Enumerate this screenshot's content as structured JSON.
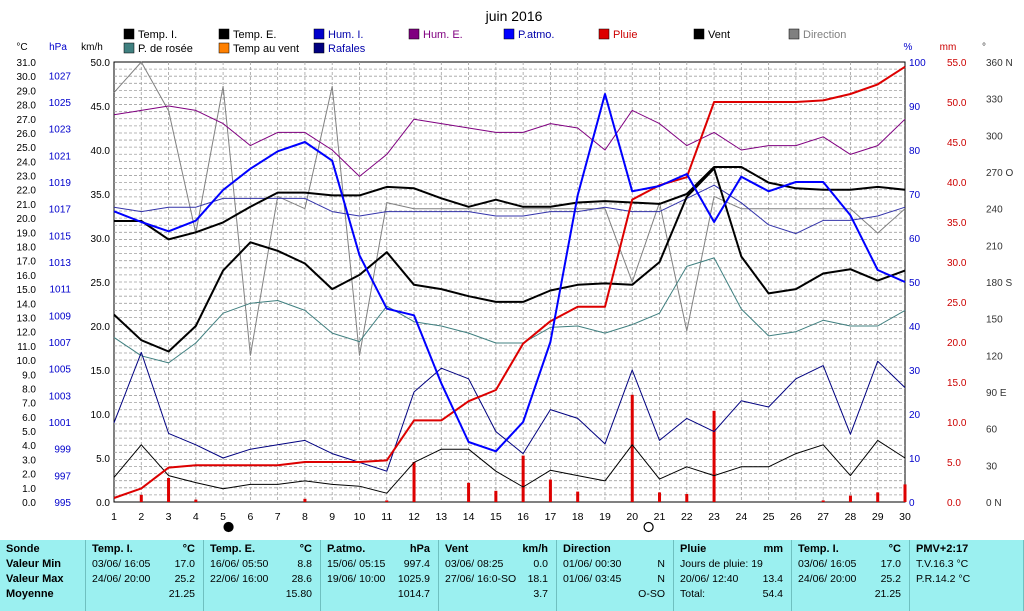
{
  "chart_data": {
    "type": "line",
    "title": "juin 2016",
    "x": [
      1,
      2,
      3,
      4,
      5,
      6,
      7,
      8,
      9,
      10,
      11,
      12,
      13,
      14,
      15,
      16,
      17,
      18,
      19,
      20,
      21,
      22,
      23,
      24,
      25,
      26,
      27,
      28,
      29,
      30
    ],
    "axes": {
      "left_c": {
        "label": "°C",
        "min": 0.0,
        "max": 31.0,
        "ticks": [
          "0.0",
          "1.0",
          "2.0",
          "3.0",
          "4.0",
          "5.0",
          "6.0",
          "7.0",
          "8.0",
          "9.0",
          "10.0",
          "11.0",
          "12.0",
          "13.0",
          "14.0",
          "15.0",
          "16.0",
          "17.0",
          "18.0",
          "19.0",
          "20.0",
          "21.0",
          "22.0",
          "23.0",
          "24.0",
          "25.0",
          "26.0",
          "27.0",
          "28.0",
          "29.0",
          "30.0",
          "31.0"
        ]
      },
      "left_hpa": {
        "label": "hPa",
        "min": 995,
        "max": 1028,
        "ticks": [
          "995",
          "997",
          "999",
          "1001",
          "1003",
          "1005",
          "1007",
          "1009",
          "1011",
          "1013",
          "1015",
          "1017",
          "1019",
          "1021",
          "1023",
          "1025",
          "1027"
        ]
      },
      "left_kmh": {
        "label": "km/h",
        "min": 0,
        "max": 50,
        "ticks": [
          "0.0",
          "5.0",
          "10.0",
          "15.0",
          "20.0",
          "25.0",
          "30.0",
          "35.0",
          "40.0",
          "45.0",
          "50.0"
        ]
      },
      "right_pct": {
        "label": "%",
        "min": 0,
        "max": 100,
        "ticks": [
          "0",
          "10",
          "20",
          "30",
          "40",
          "50",
          "60",
          "70",
          "80",
          "90",
          "100"
        ]
      },
      "right_mm": {
        "label": "mm",
        "min": 0,
        "max": 55,
        "ticks": [
          "0.0",
          "5.0",
          "10.0",
          "15.0",
          "20.0",
          "25.0",
          "30.0",
          "35.0",
          "40.0",
          "45.0",
          "50.0",
          "55.0"
        ]
      },
      "right_deg": {
        "label": "°",
        "min": 0,
        "max": 360,
        "ticks": [
          "0 N",
          "30",
          "60",
          "90 E",
          "120",
          "150",
          "180 S",
          "210",
          "240",
          "270 O",
          "300",
          "330",
          "360 N"
        ]
      }
    },
    "grid": true,
    "legend": [
      {
        "name": "Temp. I.",
        "color": "#000000"
      },
      {
        "name": "Temp. E.",
        "color": "#000000"
      },
      {
        "name": "Hum. I.",
        "color": "#0000cc"
      },
      {
        "name": "Hum. E.",
        "color": "#800080"
      },
      {
        "name": "P.atmo.",
        "color": "#0000ff"
      },
      {
        "name": "Pluie",
        "color": "#dd0000"
      },
      {
        "name": "Vent",
        "color": "#000000"
      },
      {
        "name": "Direction",
        "color": "#808080"
      },
      {
        "name": "P. de rosée",
        "color": "#408080"
      },
      {
        "name": "Temp au vent",
        "color": "#ff8000"
      },
      {
        "name": "Rafales",
        "color": "#000080"
      }
    ],
    "moon_markers": [
      {
        "x": 5.2,
        "phase": "new"
      },
      {
        "x": 20.6,
        "phase": "full"
      }
    ],
    "series": [
      {
        "name": "Temp. I.",
        "axis": "left_c",
        "color": "#000000",
        "width": 2,
        "values": [
          19.8,
          19.8,
          18.5,
          19.0,
          19.7,
          20.8,
          21.8,
          21.8,
          21.6,
          21.6,
          22.2,
          22.1,
          21.4,
          20.8,
          21.3,
          20.8,
          20.8,
          21.1,
          21.2,
          21.1,
          21.0,
          21.7,
          23.6,
          23.6,
          22.5,
          22.1,
          22.0,
          22.0,
          22.2,
          22.0
        ]
      },
      {
        "name": "Temp. E.",
        "axis": "left_c",
        "color": "#000000",
        "width": 2,
        "values": [
          13.2,
          11.4,
          10.6,
          12.4,
          16.3,
          18.3,
          17.7,
          16.8,
          15.0,
          16.0,
          17.6,
          15.3,
          15.0,
          14.5,
          14.1,
          14.1,
          14.9,
          15.3,
          15.4,
          15.3,
          16.9,
          21.5,
          23.5,
          17.3,
          14.7,
          15.0,
          16.1,
          16.4,
          15.6,
          16.3
        ]
      },
      {
        "name": "Hum. I.",
        "axis": "right_pct",
        "color": "#3333aa",
        "width": 1,
        "values": [
          67,
          66,
          67,
          67,
          69,
          69,
          69,
          69,
          66,
          65,
          66,
          66,
          66,
          66,
          65,
          65,
          66,
          66,
          67,
          66,
          66,
          69,
          72,
          68,
          63,
          61,
          64,
          64,
          65,
          67
        ]
      },
      {
        "name": "Hum. E.",
        "axis": "right_pct",
        "color": "#800080",
        "width": 1,
        "values": [
          88,
          89,
          90,
          89,
          86,
          81,
          84,
          84,
          80,
          74,
          79,
          87,
          86,
          85,
          84,
          84,
          86,
          85,
          80,
          89,
          86,
          81,
          84,
          80,
          81,
          81,
          83,
          79,
          81,
          87
        ]
      },
      {
        "name": "P.atmo.",
        "axis": "left_hpa",
        "color": "#0000ff",
        "width": 2,
        "values": [
          1016.8,
          1016.0,
          1015.3,
          1016.1,
          1018.4,
          1020.0,
          1021.3,
          1022.0,
          1020.6,
          1013.5,
          1009.5,
          1009.0,
          1003.9,
          999.5,
          998.8,
          1001.0,
          1007.0,
          1018.0,
          1025.6,
          1018.3,
          1018.7,
          1019.6,
          1016.0,
          1019.4,
          1018.3,
          1019.0,
          1019.0,
          1016.5,
          1012.4,
          1011.5
        ]
      },
      {
        "name": "Pluie",
        "axis": "right_mm",
        "color": "#dd0000",
        "width": 2,
        "values": [
          0.5,
          1.7,
          4.3,
          4.6,
          4.6,
          4.6,
          4.6,
          5.0,
          5.0,
          5.0,
          5.2,
          10.2,
          10.2,
          12.6,
          14.0,
          19.8,
          22.6,
          24.4,
          24.4,
          37.8,
          39.6,
          40.6,
          50.0,
          50.0,
          50.0,
          50.0,
          50.2,
          51.0,
          52.2,
          54.4
        ]
      },
      {
        "name": "Pluie quotidienne",
        "axis": "right_mm",
        "color": "#dd0000",
        "bars": true,
        "values": [
          0.0,
          0.9,
          3.0,
          0.3,
          0.0,
          0.0,
          0.0,
          0.4,
          0.0,
          0.0,
          0.2,
          5.0,
          0.0,
          2.4,
          1.4,
          5.8,
          2.8,
          1.3,
          0.0,
          13.4,
          1.2,
          1.0,
          11.4,
          0.0,
          0.0,
          0.0,
          0.2,
          0.8,
          1.2,
          2.2
        ]
      },
      {
        "name": "Vent",
        "axis": "left_kmh",
        "color": "#000000",
        "width": 1,
        "values": [
          2.8,
          6.5,
          3.0,
          2.2,
          1.5,
          2.0,
          2.0,
          2.4,
          2.0,
          1.8,
          1.0,
          4.5,
          6.0,
          6.0,
          3.5,
          1.7,
          3.6,
          3.0,
          2.4,
          6.5,
          2.6,
          4.0,
          3.0,
          4.0,
          4.0,
          5.5,
          6.5,
          3.0,
          7.0,
          5.0
        ]
      },
      {
        "name": "Rafales",
        "axis": "left_kmh",
        "color": "#000080",
        "width": 1,
        "values": [
          9.0,
          17.0,
          7.8,
          6.5,
          5.0,
          6.0,
          6.5,
          7.0,
          5.5,
          4.5,
          3.5,
          12.5,
          15.2,
          14.0,
          8.0,
          5.5,
          10.5,
          9.5,
          6.6,
          15.0,
          7.0,
          9.5,
          8.0,
          11.5,
          10.8,
          14.0,
          15.5,
          7.7,
          16.0,
          13.0
        ]
      },
      {
        "name": "Direction",
        "axis": "right_deg",
        "color": "#808080",
        "width": 1,
        "values": [
          335,
          360,
          320,
          220,
          340,
          120,
          250,
          240,
          340,
          120,
          245,
          240,
          240,
          240,
          240,
          240,
          240,
          240,
          240,
          180,
          245,
          140,
          250,
          240,
          240,
          240,
          240,
          240,
          220,
          240
        ]
      },
      {
        "name": "P. de rosée",
        "axis": "left_c",
        "color": "#408080",
        "width": 1,
        "values": [
          11.6,
          10.3,
          9.8,
          11.2,
          13.3,
          14.0,
          14.2,
          13.5,
          11.9,
          11.3,
          13.8,
          12.7,
          12.4,
          11.9,
          11.2,
          11.2,
          12.3,
          12.4,
          11.9,
          12.5,
          13.3,
          16.6,
          17.2,
          13.6,
          11.7,
          12.0,
          12.8,
          12.4,
          12.4,
          13.5
        ]
      }
    ]
  },
  "stats": [
    {
      "title": "Sonde",
      "rows": [
        "Valeur Min",
        "Valeur Max",
        "Moyenne"
      ]
    },
    {
      "title": "Temp. I.",
      "unit": "°C",
      "rows": [
        [
          "03/06/  16:05",
          "17.0"
        ],
        [
          "24/06/  20:00",
          "25.2"
        ],
        [
          "",
          "21.25"
        ]
      ]
    },
    {
      "title": "Temp. E.",
      "unit": "°C",
      "rows": [
        [
          "16/06/  05:50",
          "8.8"
        ],
        [
          "22/06/  16:00",
          "28.6"
        ],
        [
          "",
          "15.80"
        ]
      ]
    },
    {
      "title": "P.atmo.",
      "unit": "hPa",
      "rows": [
        [
          "15/06/  05:15",
          "997.4"
        ],
        [
          "19/06/  10:00",
          "1025.9"
        ],
        [
          "",
          "1014.7"
        ]
      ]
    },
    {
      "title": "Vent",
      "unit": "km/h",
      "rows": [
        [
          "03/06/  08:25",
          "0.0"
        ],
        [
          "27/06/  16:0-SO",
          "18.1"
        ],
        [
          "",
          "3.7"
        ]
      ]
    },
    {
      "title": "Direction",
      "unit": "",
      "rows": [
        [
          "01/06/  00:30",
          "N"
        ],
        [
          "01/06/  03:45",
          "N"
        ],
        [
          "",
          "O-SO"
        ]
      ]
    },
    {
      "title": "Pluie",
      "unit": "mm",
      "rows": [
        [
          "Jours de pluie: 19",
          ""
        ],
        [
          "20/06/  12:40",
          "13.4"
        ],
        [
          "Total:",
          "54.4"
        ]
      ]
    },
    {
      "title": "Temp. I.",
      "unit": "°C",
      "rows": [
        [
          "03/06/  16:05",
          "17.0"
        ],
        [
          "24/06/  20:00",
          "25.2"
        ],
        [
          "",
          "21.25"
        ]
      ]
    },
    {
      "title": "PMV+2:17",
      "unit": "",
      "rows": [
        [
          "T.V.16.3 °C",
          ""
        ],
        [
          "P.R.14.2 °C",
          ""
        ],
        [
          "",
          ""
        ]
      ]
    }
  ]
}
